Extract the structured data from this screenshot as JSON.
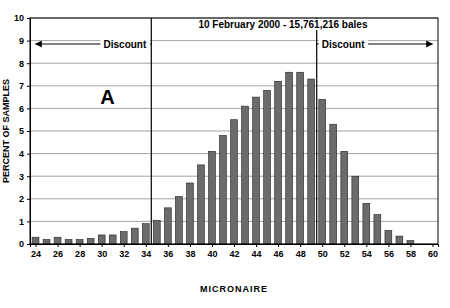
{
  "chart_data": {
    "type": "bar",
    "title": "10 February 2000 - 15,761,216 bales",
    "xlabel": "MICRONAIRE",
    "ylabel": "PERCENT OF SAMPLES",
    "panel_label": "A",
    "x": [
      24,
      25,
      26,
      27,
      28,
      29,
      30,
      31,
      32,
      33,
      34,
      35,
      36,
      37,
      38,
      39,
      40,
      41,
      42,
      43,
      44,
      45,
      46,
      47,
      48,
      49,
      50,
      51,
      52,
      53,
      54,
      55,
      56,
      57,
      58
    ],
    "values": [
      0.3,
      0.2,
      0.3,
      0.2,
      0.2,
      0.25,
      0.4,
      0.4,
      0.55,
      0.7,
      0.9,
      1.05,
      1.6,
      2.1,
      2.7,
      3.5,
      4.1,
      4.8,
      5.5,
      6.1,
      6.5,
      6.8,
      7.2,
      7.6,
      7.6,
      7.3,
      6.4,
      5.3,
      4.1,
      3.0,
      1.8,
      1.3,
      0.6,
      0.35,
      0.15
    ],
    "color": "#6b6b6b",
    "xlim": [
      23.5,
      60.5
    ],
    "xticks": [
      24,
      26,
      28,
      30,
      32,
      34,
      36,
      38,
      40,
      42,
      44,
      46,
      48,
      50,
      52,
      54,
      56,
      58,
      60
    ],
    "ylim": [
      0,
      10
    ],
    "yticks": [
      0,
      1,
      2,
      3,
      4,
      5,
      6,
      7,
      8,
      9,
      10
    ],
    "grid": true,
    "discount_zones": [
      {
        "label": "Discount",
        "from": 34.5,
        "to": 24
      },
      {
        "label": "Discount",
        "from": 49.5,
        "to": 60
      }
    ]
  }
}
